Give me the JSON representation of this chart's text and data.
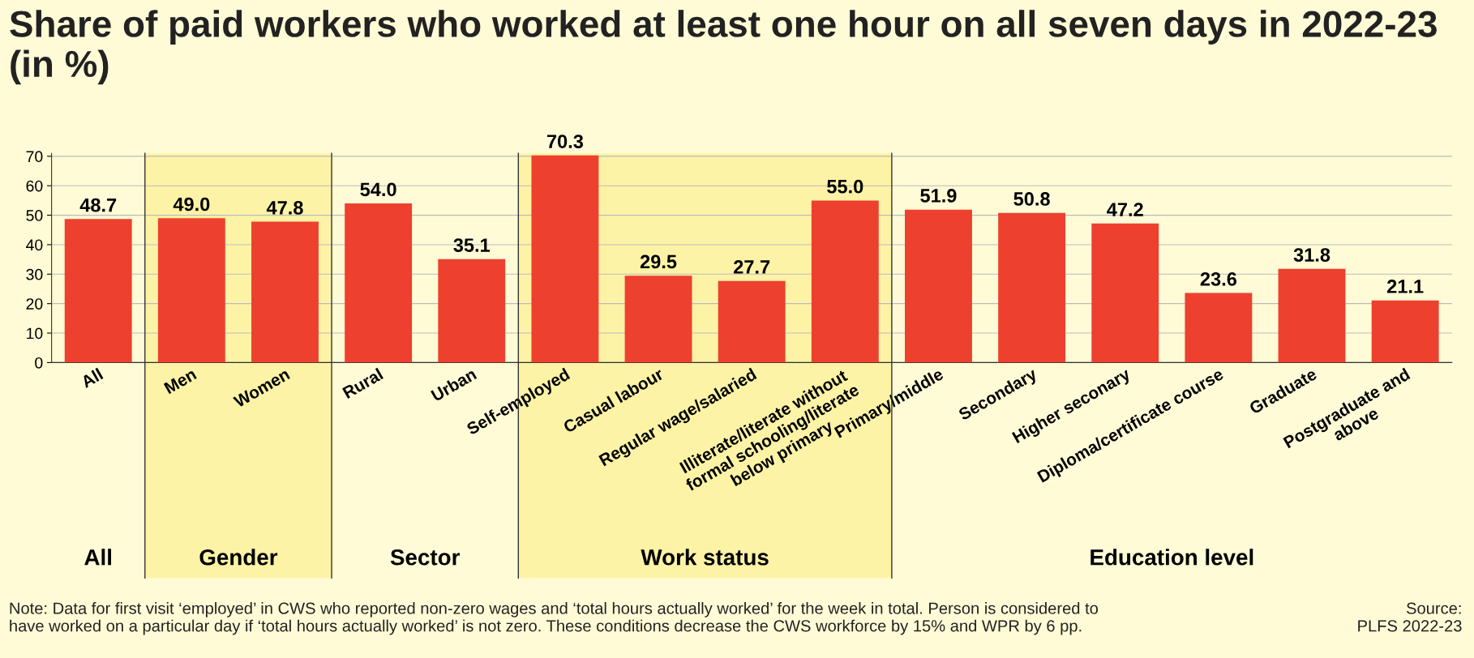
{
  "chart_data": {
    "type": "bar",
    "title": "Share of paid workers who worked at least one hour on all seven days in 2022-23 (in %)",
    "categories": [
      "All",
      "Men",
      "Women",
      "Rural",
      "Urban",
      "Self-employed",
      "Casual labour",
      "Regular wage/salaried",
      "Illiterate/literate without\nformal schooling/literate\nbelow primary",
      "Primary/middle",
      "Secondary",
      "Higher seconary",
      "Diploma/certificate course",
      "Graduate",
      "Postgraduate and\nabove"
    ],
    "values": [
      48.7,
      49.0,
      47.8,
      54.0,
      35.1,
      70.3,
      29.5,
      27.7,
      55.0,
      51.9,
      50.8,
      47.2,
      23.6,
      31.8,
      21.1
    ],
    "value_labels": [
      "48.7",
      "49.0",
      "47.8",
      "54.0",
      "35.1",
      "70.3",
      "29.5",
      "27.7",
      "55.0",
      "51.9",
      "50.8",
      "47.2",
      "23.6",
      "31.8",
      "21.1"
    ],
    "color": "#ee402e",
    "ylim": [
      0,
      71
    ],
    "yticks": [
      0,
      10,
      20,
      30,
      40,
      50,
      60,
      70
    ],
    "grid": "y",
    "bands": [
      {
        "axis": "x",
        "from": "Men",
        "to": "Women",
        "label": "Gender",
        "color": "#fdf3a6"
      },
      {
        "axis": "x",
        "from": "Self-employed",
        "to": "Illiterate/literate without\nformal schooling/literate\nbelow primary",
        "label": "Work status",
        "color": "#fdf3a6"
      }
    ],
    "annotations": [
      "All",
      "Sector",
      "Education level",
      "Note: Data for first visit ‘employed’ in CWS who reported non-zero wages and ‘total hours actually worked’ for the week in total. Person is considered to\nhave worked on a particular day if ‘total hours actually worked’ is not zero. These conditions decrease the CWS workforce by 15% and WPR by 6 pp.",
      "Source:\nPLFS 2022-23"
    ]
  }
}
